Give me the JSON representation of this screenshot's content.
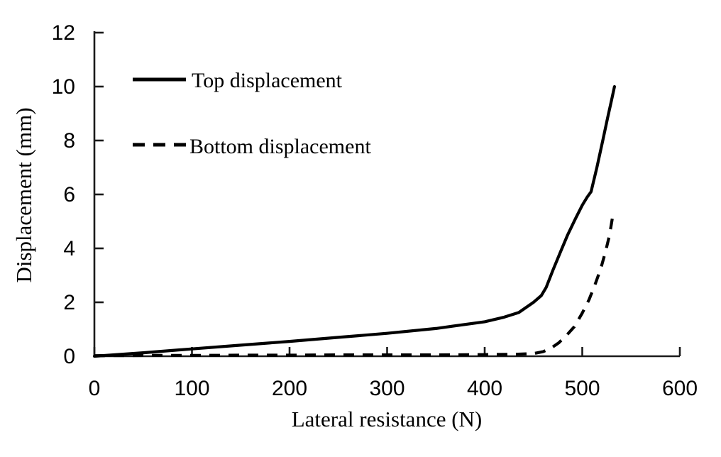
{
  "figure": {
    "background": "#ffffff",
    "axis_color": "#1a1a1a",
    "ink_color": "#000000"
  },
  "chart_data": {
    "type": "line",
    "title": "",
    "xlabel": "Lateral resistance (N)",
    "ylabel": "Displacement (mm)",
    "xlim": [
      0,
      600
    ],
    "ylim": [
      0,
      12
    ],
    "x_ticks": [
      0,
      100,
      200,
      300,
      400,
      500,
      600
    ],
    "y_ticks": [
      0,
      2,
      4,
      6,
      8,
      10,
      12
    ],
    "grid": false,
    "legend_position": "inside-top-left",
    "series": [
      {
        "name": "Top displacement",
        "style": "solid",
        "color": "#000000",
        "points": [
          [
            0,
            0
          ],
          [
            50,
            0.13
          ],
          [
            100,
            0.27
          ],
          [
            150,
            0.41
          ],
          [
            200,
            0.55
          ],
          [
            250,
            0.7
          ],
          [
            300,
            0.85
          ],
          [
            350,
            1.03
          ],
          [
            400,
            1.28
          ],
          [
            420,
            1.45
          ],
          [
            435,
            1.62
          ],
          [
            450,
            2.0
          ],
          [
            458,
            2.25
          ],
          [
            463,
            2.55
          ],
          [
            470,
            3.2
          ],
          [
            478,
            3.9
          ],
          [
            485,
            4.5
          ],
          [
            493,
            5.1
          ],
          [
            500,
            5.6
          ],
          [
            505,
            5.9
          ],
          [
            509,
            6.1
          ],
          [
            515,
            7.0
          ],
          [
            521,
            8.0
          ],
          [
            526,
            8.85
          ],
          [
            530,
            9.5
          ],
          [
            533,
            10.0
          ]
        ]
      },
      {
        "name": "Bottom displacement",
        "style": "dashed",
        "color": "#000000",
        "points": [
          [
            0,
            0.02
          ],
          [
            50,
            0.03
          ],
          [
            100,
            0.03
          ],
          [
            150,
            0.04
          ],
          [
            200,
            0.04
          ],
          [
            250,
            0.05
          ],
          [
            300,
            0.05
          ],
          [
            350,
            0.05
          ],
          [
            400,
            0.06
          ],
          [
            430,
            0.07
          ],
          [
            450,
            0.1
          ],
          [
            460,
            0.17
          ],
          [
            468,
            0.3
          ],
          [
            476,
            0.5
          ],
          [
            484,
            0.78
          ],
          [
            492,
            1.1
          ],
          [
            500,
            1.6
          ],
          [
            507,
            2.1
          ],
          [
            513,
            2.65
          ],
          [
            519,
            3.25
          ],
          [
            524,
            3.9
          ],
          [
            528,
            4.5
          ],
          [
            531,
            5.15
          ]
        ]
      }
    ]
  }
}
